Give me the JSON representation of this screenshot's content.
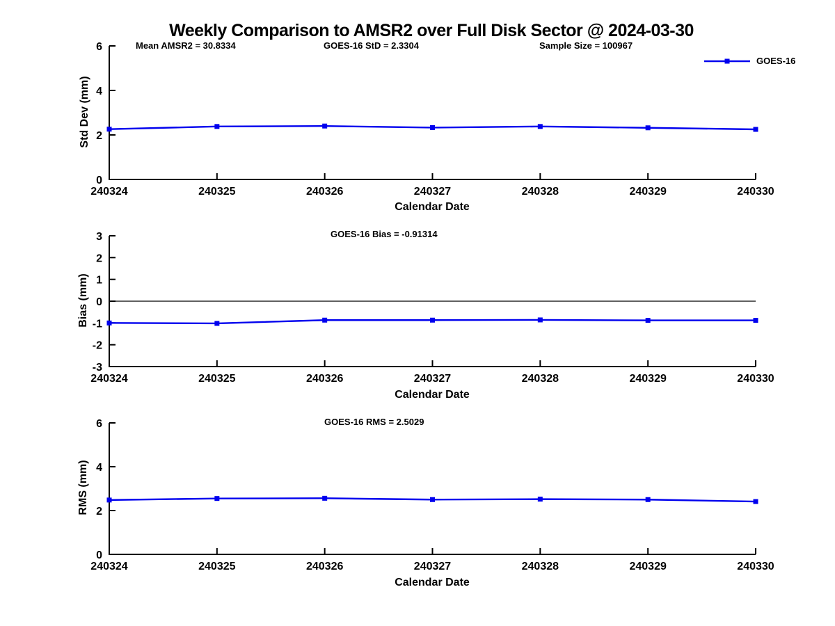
{
  "figure": {
    "title": "Weekly Comparison to AMSR2 over Full Disk Sector @ 2024-03-30",
    "background": "#ffffff",
    "axis_color": "#000000"
  },
  "legend": {
    "label": "GOES-16",
    "line_color": "#0000EE",
    "marker": "square",
    "position": "top-right"
  },
  "chart_data": [
    {
      "type": "line",
      "xlabel": "Calendar Date",
      "ylabel": "Std Dev (mm)",
      "categories": [
        "240324",
        "240325",
        "240326",
        "240327",
        "240328",
        "240329",
        "240330"
      ],
      "series": [
        {
          "name": "GOES-16",
          "color": "#0000EE",
          "marker": "square",
          "values": [
            2.26,
            2.38,
            2.4,
            2.33,
            2.38,
            2.32,
            2.25
          ]
        }
      ],
      "ylim": [
        0,
        6
      ],
      "yticks": [
        0,
        2,
        4,
        6
      ],
      "grid": false,
      "zero_line": false,
      "annotations": [
        {
          "text": "Mean AMSR2 = 30.8334"
        },
        {
          "text": "GOES-16 StD = 2.3304"
        },
        {
          "text": "Sample Size = 100967"
        }
      ]
    },
    {
      "type": "line",
      "xlabel": "Calendar Date",
      "ylabel": "Bias (mm)",
      "categories": [
        "240324",
        "240325",
        "240326",
        "240327",
        "240328",
        "240329",
        "240330"
      ],
      "series": [
        {
          "name": "GOES-16",
          "color": "#0000EE",
          "marker": "square",
          "values": [
            -1.0,
            -1.02,
            -0.87,
            -0.87,
            -0.86,
            -0.88,
            -0.88
          ]
        }
      ],
      "ylim": [
        -3,
        3
      ],
      "yticks": [
        -3,
        -2,
        -1,
        0,
        1,
        2,
        3
      ],
      "grid": false,
      "zero_line": true,
      "annotations": [
        {
          "text": "GOES-16 Bias  = -0.91314"
        }
      ]
    },
    {
      "type": "line",
      "xlabel": "Calendar Date",
      "ylabel": "RMS (mm)",
      "categories": [
        "240324",
        "240325",
        "240326",
        "240327",
        "240328",
        "240329",
        "240330"
      ],
      "series": [
        {
          "name": "GOES-16",
          "color": "#0000EE",
          "marker": "square",
          "values": [
            2.48,
            2.55,
            2.56,
            2.5,
            2.52,
            2.5,
            2.41
          ]
        }
      ],
      "ylim": [
        0,
        6
      ],
      "yticks": [
        0,
        2,
        4,
        6
      ],
      "grid": false,
      "zero_line": false,
      "annotations": [
        {
          "text": "GOES-16 RMS = 2.5029"
        }
      ]
    }
  ]
}
